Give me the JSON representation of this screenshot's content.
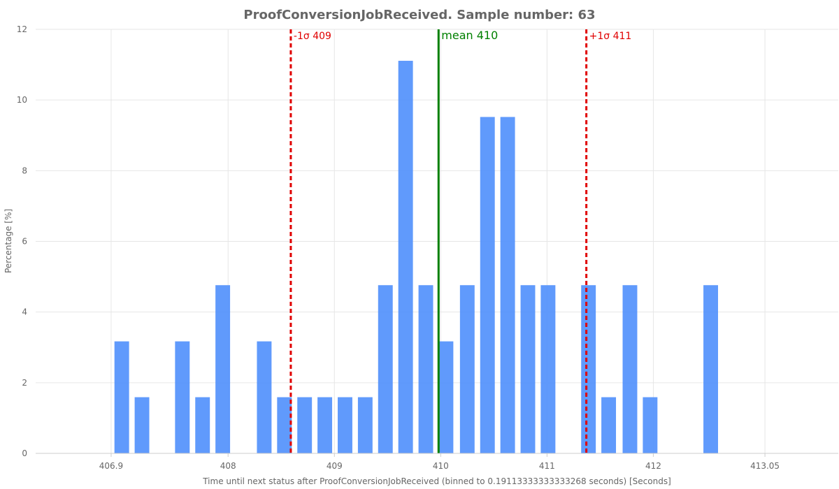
{
  "chart_data": {
    "type": "bar",
    "title": "ProofConversionJobReceived. Sample number: 63",
    "xlabel": "Time until next status after ProofConversionJobReceived (binned to 0.19113333333333268 seconds) [Seconds]",
    "ylabel": "Percentage [%]",
    "ylim": [
      0,
      12
    ],
    "yticks": [
      0,
      2,
      4,
      6,
      8,
      10,
      12
    ],
    "xlim": [
      406.19,
      413.74
    ],
    "xticks": [
      {
        "value": 406.9,
        "label": "406.9"
      },
      {
        "value": 408,
        "label": "408"
      },
      {
        "value": 409,
        "label": "409"
      },
      {
        "value": 410,
        "label": "410"
      },
      {
        "value": 411,
        "label": "411"
      },
      {
        "value": 412,
        "label": "412"
      },
      {
        "value": 413.05,
        "label": "413.05"
      }
    ],
    "grid": true,
    "bin_width": 0.19113333333333268,
    "bars": [
      {
        "x": 407.0,
        "value": 3.17
      },
      {
        "x": 407.19,
        "value": 1.59
      },
      {
        "x": 407.57,
        "value": 3.17
      },
      {
        "x": 407.76,
        "value": 1.59
      },
      {
        "x": 407.95,
        "value": 4.76
      },
      {
        "x": 408.34,
        "value": 3.17
      },
      {
        "x": 408.53,
        "value": 1.59
      },
      {
        "x": 408.72,
        "value": 1.59
      },
      {
        "x": 408.91,
        "value": 1.59
      },
      {
        "x": 409.1,
        "value": 1.59
      },
      {
        "x": 409.29,
        "value": 1.59
      },
      {
        "x": 409.48,
        "value": 4.76
      },
      {
        "x": 409.67,
        "value": 11.11
      },
      {
        "x": 409.86,
        "value": 4.76
      },
      {
        "x": 410.05,
        "value": 3.17
      },
      {
        "x": 410.25,
        "value": 4.76
      },
      {
        "x": 410.44,
        "value": 9.52
      },
      {
        "x": 410.63,
        "value": 9.52
      },
      {
        "x": 410.82,
        "value": 4.76
      },
      {
        "x": 411.01,
        "value": 4.76
      },
      {
        "x": 411.39,
        "value": 4.76
      },
      {
        "x": 411.58,
        "value": 1.59
      },
      {
        "x": 411.78,
        "value": 4.76
      },
      {
        "x": 411.97,
        "value": 1.59
      },
      {
        "x": 412.54,
        "value": 4.76
      }
    ],
    "bar_color": "#4f8ffc",
    "mean": {
      "value": 409.98,
      "label": "mean 410",
      "color": "#008000"
    },
    "minus_sigma": {
      "value": 408.59,
      "label": "-1σ 409",
      "color": "#e00000"
    },
    "plus_sigma": {
      "value": 411.37,
      "label": "+1σ 411",
      "color": "#e00000"
    }
  }
}
